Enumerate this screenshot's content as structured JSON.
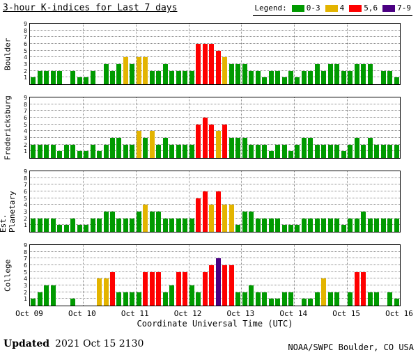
{
  "title": "3-hour K-indices for Last 7 days",
  "legend": {
    "label": "Legend:",
    "items": [
      {
        "label": "0-3",
        "color": "#009a00"
      },
      {
        "label": "4",
        "color": "#e3b400"
      },
      {
        "label": "5,6",
        "color": "#fe0000"
      },
      {
        "label": "7-9",
        "color": "#4b0082"
      }
    ]
  },
  "footer": {
    "updated_label": "Updated",
    "updated_value": "2021 Oct 15 2130",
    "credit": "NOAA/SWPC Boulder, CO USA"
  },
  "chart_data": {
    "type": "bar",
    "title": "3-hour K-indices for Last 7 days",
    "xlabel": "Coordinate Universal Time (UTC)",
    "x_tick_labels": [
      "Oct 09",
      "Oct 10",
      "Oct 11",
      "Oct 12",
      "Oct 13",
      "Oct 14",
      "Oct 15",
      "Oct 16"
    ],
    "y_ticks": [
      1,
      2,
      3,
      4,
      5,
      6,
      7,
      8,
      9
    ],
    "ylim": [
      0,
      9
    ],
    "days": 7,
    "slots_per_day": 8,
    "grid": true,
    "legend_position": "top-right",
    "colors": {
      "k0_3": "#009a00",
      "k4": "#e3b400",
      "k5_6": "#fe0000",
      "k7_9": "#4b0082"
    },
    "series": [
      {
        "name": "Boulder",
        "values": [
          1,
          2,
          2,
          2,
          2,
          0,
          2,
          1,
          1,
          2,
          0,
          3,
          2,
          3,
          4,
          3,
          4,
          4,
          2,
          2,
          3,
          2,
          2,
          2,
          2,
          6,
          6,
          6,
          5,
          4,
          3,
          3,
          3,
          2,
          2,
          1,
          2,
          2,
          1,
          2,
          1,
          2,
          2,
          3,
          2,
          3,
          3,
          2,
          2,
          3,
          3,
          3,
          0,
          2,
          2,
          1
        ]
      },
      {
        "name": "Fredericksburg",
        "values": [
          2,
          2,
          2,
          2,
          1,
          2,
          2,
          1,
          1,
          2,
          1,
          2,
          3,
          3,
          2,
          2,
          4,
          3,
          4,
          2,
          3,
          2,
          2,
          2,
          2,
          5,
          6,
          5,
          4,
          5,
          3,
          3,
          3,
          2,
          2,
          2,
          1,
          2,
          2,
          1,
          2,
          3,
          3,
          2,
          2,
          2,
          2,
          1,
          2,
          3,
          2,
          3,
          2,
          2,
          2,
          2
        ]
      },
      {
        "name": "Est. Planetary",
        "values": [
          2,
          2,
          2,
          2,
          1,
          1,
          2,
          1,
          1,
          2,
          2,
          3,
          3,
          2,
          2,
          2,
          3,
          4,
          3,
          3,
          2,
          2,
          2,
          2,
          2,
          5,
          6,
          4,
          6,
          4,
          4,
          1,
          3,
          3,
          2,
          2,
          2,
          2,
          1,
          1,
          1,
          2,
          2,
          2,
          2,
          2,
          2,
          1,
          2,
          2,
          3,
          2,
          2,
          2,
          2,
          2
        ]
      },
      {
        "name": "College",
        "values": [
          1,
          2,
          3,
          3,
          0,
          0,
          1,
          0,
          0,
          0,
          4,
          4,
          5,
          2,
          2,
          2,
          2,
          5,
          5,
          5,
          2,
          3,
          5,
          5,
          3,
          2,
          5,
          6,
          7,
          6,
          6,
          2,
          2,
          3,
          2,
          2,
          1,
          1,
          2,
          2,
          0,
          1,
          1,
          2,
          4,
          2,
          2,
          0,
          2,
          5,
          5,
          2,
          2,
          0,
          2,
          1
        ]
      }
    ]
  }
}
